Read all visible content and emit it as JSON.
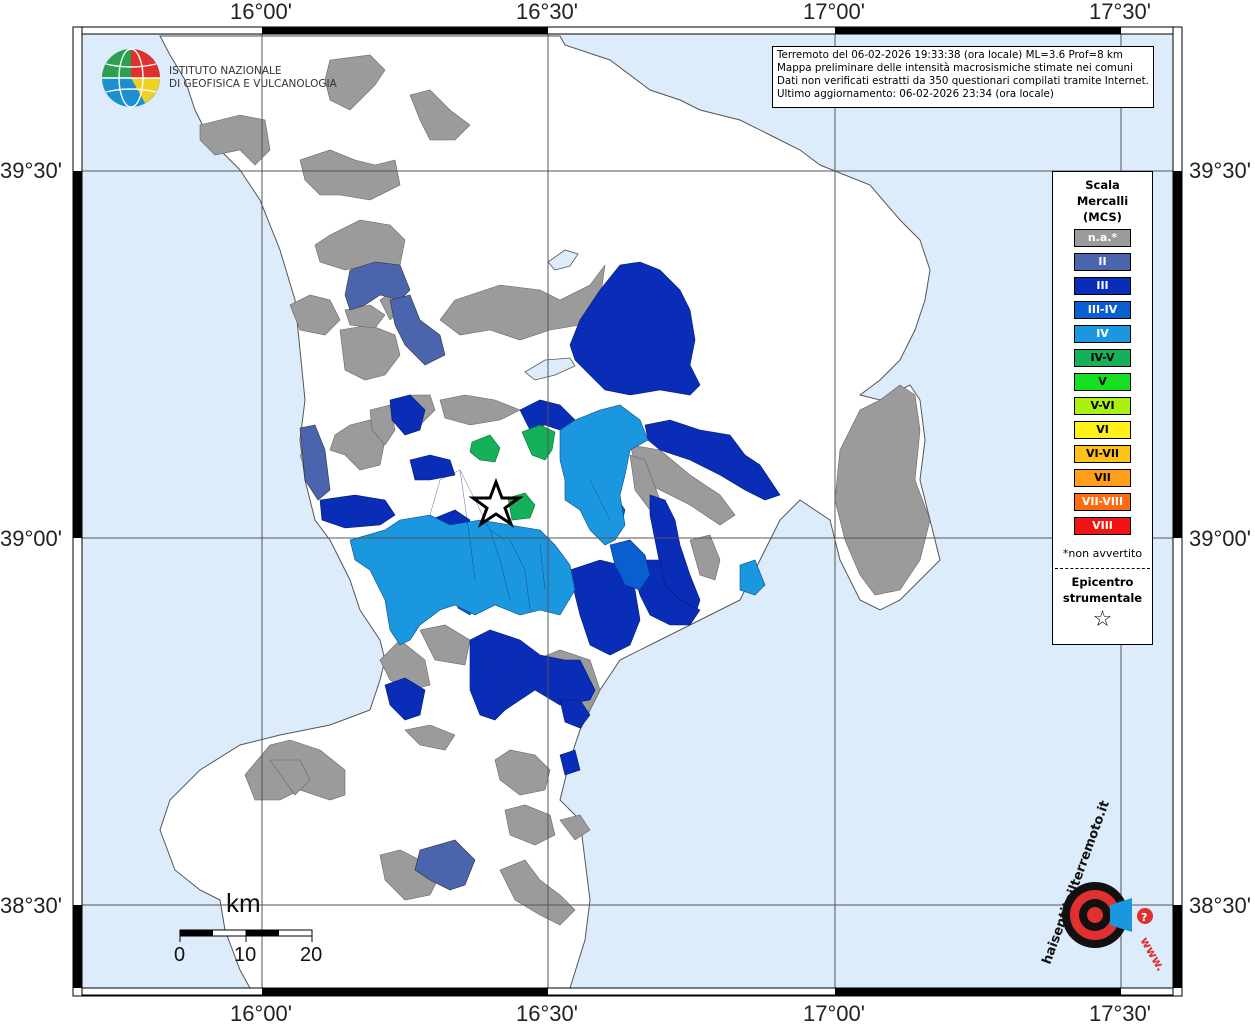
{
  "coords": {
    "lon_labels": [
      "16°00'",
      "16°30'",
      "17°00'",
      "17°30'"
    ],
    "lat_labels": [
      "39°30'",
      "39°00'",
      "38°30'"
    ]
  },
  "logo": {
    "line1": "ISTITUTO NAZIONALE",
    "line2": "DI GEOFISICA E VULCANOLOGIA"
  },
  "info": {
    "line1": "Terremoto del 06-02-2026 19:33:38 (ora locale) ML=3.6 Prof=8 km",
    "line2": "Mappa preliminare delle intensità macrosismiche stimate nei comuni",
    "line3": "Dati non verificati estratti da 350 questionari compilati tramite Internet.",
    "line4": "Ultimo aggiornamento: 06-02-2026 23:34 (ora locale)"
  },
  "legend": {
    "title1": "Scala",
    "title2": "Mercalli",
    "title3": "(MCS)",
    "items": [
      {
        "label": "n.a.*",
        "color": "#9b9b9b"
      },
      {
        "label": "II",
        "color": "#4a64ad"
      },
      {
        "label": "III",
        "color": "#0a2db8"
      },
      {
        "label": "III-IV",
        "color": "#0a5fd0"
      },
      {
        "label": "IV",
        "color": "#1b97e0"
      },
      {
        "label": "IV-V",
        "color": "#14b05a"
      },
      {
        "label": "V",
        "color": "#14e020"
      },
      {
        "label": "V-VI",
        "color": "#aaf012"
      },
      {
        "label": "VI",
        "color": "#fff01a"
      },
      {
        "label": "VI-VII",
        "color": "#ffc21a"
      },
      {
        "label": "VII",
        "color": "#ff9e1a"
      },
      {
        "label": "VII-VIII",
        "color": "#ff6a14"
      },
      {
        "label": "VIII",
        "color": "#f01414"
      }
    ],
    "note": "*non avvertito",
    "epicenter1": "Epicentro",
    "epicenter2": "strumentale",
    "star": "☆"
  },
  "scale": {
    "unit": "km",
    "ticks": [
      "0",
      "10",
      "20"
    ]
  },
  "watermark": {
    "text": "haisentitoilterremoto.it",
    "prefix": "www."
  },
  "colors": {
    "sea": "#dcecfa",
    "land": "#ffffff",
    "gray": "#9b9b9b"
  }
}
